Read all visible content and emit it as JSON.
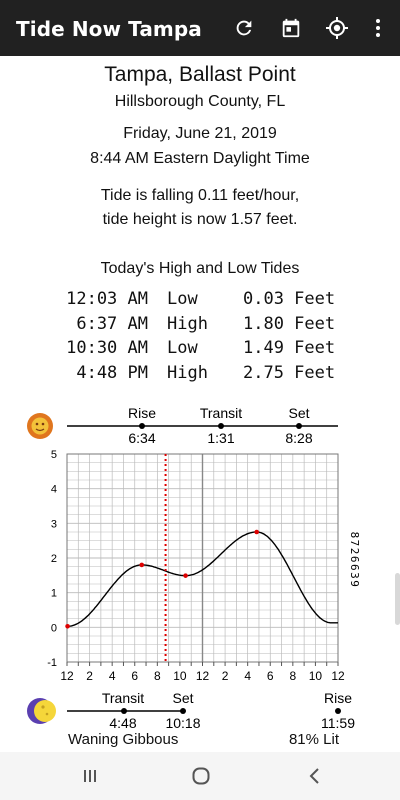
{
  "app": {
    "title": "Tide Now Tampa",
    "toolbar_icons": [
      "refresh-icon",
      "calendar-icon",
      "my-location-icon",
      "more-vert-icon"
    ]
  },
  "station": {
    "name": "Tampa, Ballast Point",
    "county": "Hillsborough County, FL",
    "station_id": "8726639"
  },
  "now": {
    "date": "Friday, June 21, 2019",
    "time": "8:44 AM Eastern Daylight Time",
    "status_line1": "Tide is falling 0.11 feet/hour,",
    "status_line2": "tide height is now  1.57 feet."
  },
  "tides": {
    "title": "Today's High and Low Tides",
    "rows": [
      {
        "time": "12:03 AM",
        "kind": "Low",
        "height": "0.03 Feet"
      },
      {
        "time": "6:37 AM",
        "kind": "High",
        "height": "1.80 Feet"
      },
      {
        "time": "10:30 AM",
        "kind": "Low",
        "height": "1.49 Feet"
      },
      {
        "time": "4:48 PM",
        "kind": "High",
        "height": "2.75 Feet"
      }
    ]
  },
  "sun": {
    "icon": "sun-icon",
    "rise_label": "Rise",
    "rise_time": "6:34",
    "transit_label": "Transit",
    "transit_time": "1:31",
    "set_label": "Set",
    "set_time": "8:28"
  },
  "moon": {
    "icon": "moon-icon",
    "transit_label": "Transit",
    "transit_time": "4:48",
    "set_label": "Set",
    "set_time": "10:18",
    "rise_label": "Rise",
    "rise_time": "11:59",
    "phase": "Waning Gibbous",
    "lit": "81% Lit"
  },
  "chart_data": {
    "type": "line",
    "x_unit": "hours since midnight",
    "xlim": [
      0,
      24
    ],
    "xticks": [
      "12",
      "2",
      "4",
      "6",
      "8",
      "10",
      "12",
      "2",
      "4",
      "6",
      "8",
      "10",
      "12"
    ],
    "ylim": [
      -1,
      5
    ],
    "yticks": [
      "-1",
      "0",
      "1",
      "2",
      "3",
      "4",
      "5"
    ],
    "grid": true,
    "current_time_hours": 8.73,
    "noon_line_hours": 12,
    "extrema": [
      {
        "x": 0.05,
        "y": 0.03
      },
      {
        "x": 6.62,
        "y": 1.8
      },
      {
        "x": 10.5,
        "y": 1.49
      },
      {
        "x": 16.8,
        "y": 2.75
      }
    ],
    "end_values": {
      "x": 24,
      "y": 0.25
    },
    "colors": {
      "curve": "#000000",
      "grid": "#bbbbbb",
      "marker": "#dd0000",
      "now_line": "#dd0000"
    }
  },
  "navbar": {
    "buttons": [
      "recents-button",
      "home-button",
      "back-button"
    ]
  }
}
